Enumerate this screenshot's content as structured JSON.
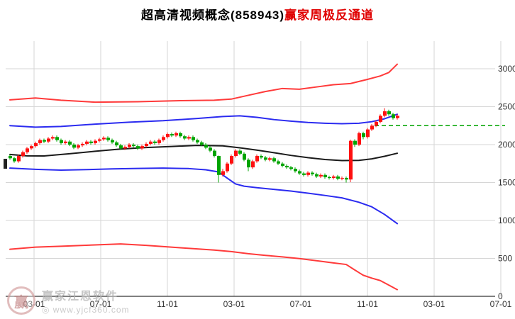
{
  "watermark": {
    "name": "赢家江恩软件",
    "url": "◎ www.yjcf360.com",
    "logo_char": "赢"
  },
  "chart_data": {
    "type": "candlestick",
    "title_black": "超高清视频概念(858943)",
    "title_red": "赢家周极反通道",
    "ylim": [
      0,
      3000
    ],
    "y_ticks": [
      0,
      500,
      1000,
      1500,
      2000,
      2500,
      3000
    ],
    "x_ticks": [
      "03-01",
      "07-01",
      "11-01",
      "03-01",
      "07-01",
      "11-01",
      "03-01",
      "07-01"
    ],
    "grid": true,
    "colors": {
      "up": "#fe1010",
      "down": "#00a400",
      "channel_red": "#ff3a3a",
      "channel_blue": "#2b2bf0",
      "channel_mid": "#1a1a1a",
      "dashed": "#00a400",
      "grid": "#d6d6d6",
      "axis": "#000000",
      "tick_text": "#333333"
    },
    "candles": [
      [
        1850,
        1870,
        1800,
        1820
      ],
      [
        1820,
        1840,
        1760,
        1780
      ],
      [
        1780,
        1870,
        1760,
        1850
      ],
      [
        1850,
        1920,
        1830,
        1900
      ],
      [
        1900,
        1970,
        1880,
        1950
      ],
      [
        1950,
        2000,
        1930,
        1980
      ],
      [
        1980,
        2040,
        1960,
        2020
      ],
      [
        2020,
        2080,
        2000,
        2060
      ],
      [
        2060,
        2080,
        2020,
        2040
      ],
      [
        2040,
        2100,
        2020,
        2080
      ],
      [
        2080,
        2120,
        2060,
        2100
      ],
      [
        2100,
        2120,
        2040,
        2060
      ],
      [
        2060,
        2080,
        2000,
        2020
      ],
      [
        2020,
        2060,
        2000,
        2040
      ],
      [
        2040,
        2060,
        1980,
        2000
      ],
      [
        2000,
        2020,
        1940,
        1960
      ],
      [
        1960,
        2010,
        1940,
        1990
      ],
      [
        1990,
        2030,
        1970,
        2010
      ],
      [
        2010,
        2060,
        1990,
        2040
      ],
      [
        2040,
        2060,
        2000,
        2020
      ],
      [
        2020,
        2070,
        2000,
        2050
      ],
      [
        2050,
        2090,
        2030,
        2070
      ],
      [
        2070,
        2110,
        2050,
        2090
      ],
      [
        2090,
        2110,
        2040,
        2060
      ],
      [
        2060,
        2080,
        2010,
        2030
      ],
      [
        2030,
        2050,
        1970,
        1990
      ],
      [
        1990,
        2010,
        1930,
        1950
      ],
      [
        1950,
        1990,
        1930,
        1970
      ],
      [
        1970,
        2020,
        1950,
        2000
      ],
      [
        2000,
        2020,
        1960,
        1980
      ],
      [
        1980,
        2000,
        1930,
        1950
      ],
      [
        1950,
        2000,
        1930,
        1980
      ],
      [
        1980,
        2030,
        1960,
        2010
      ],
      [
        2010,
        2060,
        1990,
        2040
      ],
      [
        2040,
        2060,
        2000,
        2020
      ],
      [
        2020,
        2080,
        2000,
        2060
      ],
      [
        2060,
        2120,
        2040,
        2100
      ],
      [
        2100,
        2160,
        2080,
        2140
      ],
      [
        2140,
        2160,
        2100,
        2120
      ],
      [
        2120,
        2170,
        2100,
        2150
      ],
      [
        2150,
        2170,
        2090,
        2110
      ],
      [
        2110,
        2130,
        2060,
        2080
      ],
      [
        2080,
        2120,
        2060,
        2100
      ],
      [
        2100,
        2120,
        2040,
        2060
      ],
      [
        2060,
        2080,
        2010,
        2030
      ],
      [
        2030,
        2050,
        1980,
        2000
      ],
      [
        2000,
        2020,
        1940,
        1960
      ],
      [
        1960,
        1980,
        1900,
        1920
      ],
      [
        1920,
        1940,
        1830,
        1850
      ],
      [
        1850,
        1855,
        1500,
        1600
      ],
      [
        1600,
        1680,
        1580,
        1650
      ],
      [
        1650,
        1770,
        1630,
        1750
      ],
      [
        1750,
        1870,
        1730,
        1850
      ],
      [
        1850,
        1940,
        1830,
        1920
      ],
      [
        1920,
        1940,
        1860,
        1880
      ],
      [
        1880,
        1900,
        1780,
        1800
      ],
      [
        1800,
        1820,
        1650,
        1700
      ],
      [
        1700,
        1800,
        1680,
        1780
      ],
      [
        1780,
        1870,
        1760,
        1850
      ],
      [
        1850,
        1870,
        1810,
        1830
      ],
      [
        1830,
        1850,
        1780,
        1800
      ],
      [
        1800,
        1840,
        1780,
        1820
      ],
      [
        1820,
        1840,
        1760,
        1780
      ],
      [
        1780,
        1800,
        1730,
        1750
      ],
      [
        1750,
        1770,
        1700,
        1720
      ],
      [
        1720,
        1740,
        1680,
        1700
      ],
      [
        1700,
        1720,
        1660,
        1680
      ],
      [
        1680,
        1700,
        1630,
        1650
      ],
      [
        1650,
        1670,
        1600,
        1620
      ],
      [
        1620,
        1640,
        1580,
        1600
      ],
      [
        1600,
        1650,
        1580,
        1630
      ],
      [
        1630,
        1650,
        1590,
        1610
      ],
      [
        1610,
        1630,
        1560,
        1580
      ],
      [
        1580,
        1620,
        1560,
        1600
      ],
      [
        1600,
        1620,
        1550,
        1570
      ],
      [
        1570,
        1590,
        1540,
        1560
      ],
      [
        1560,
        1600,
        1540,
        1580
      ],
      [
        1580,
        1600,
        1530,
        1550
      ],
      [
        1550,
        1580,
        1530,
        1560
      ],
      [
        1560,
        1580,
        1500,
        1540
      ],
      [
        1540,
        2065,
        1505,
        2050
      ],
      [
        2050,
        2070,
        1970,
        2000
      ],
      [
        2000,
        2170,
        1980,
        2150
      ],
      [
        2150,
        2170,
        2070,
        2100
      ],
      [
        2100,
        2220,
        2080,
        2200
      ],
      [
        2200,
        2270,
        2180,
        2250
      ],
      [
        2250,
        2320,
        2230,
        2300
      ],
      [
        2300,
        2400,
        2280,
        2380
      ],
      [
        2380,
        2480,
        2360,
        2440
      ],
      [
        2440,
        2460,
        2380,
        2400
      ],
      [
        2400,
        2420,
        2330,
        2350
      ],
      [
        2350,
        2400,
        2330,
        2380
      ]
    ],
    "channel_lines": {
      "upper_red": [
        [
          0,
          2590
        ],
        [
          6,
          2615
        ],
        [
          12,
          2585
        ],
        [
          20,
          2560
        ],
        [
          30,
          2565
        ],
        [
          40,
          2580
        ],
        [
          48,
          2585
        ],
        [
          52,
          2600
        ],
        [
          56,
          2650
        ],
        [
          60,
          2700
        ],
        [
          64,
          2740
        ],
        [
          68,
          2730
        ],
        [
          72,
          2760
        ],
        [
          76,
          2790
        ],
        [
          80,
          2805
        ],
        [
          84,
          2860
        ],
        [
          87,
          2905
        ],
        [
          89,
          2950
        ],
        [
          91,
          3060
        ]
      ],
      "upper_blue": [
        [
          0,
          2250
        ],
        [
          6,
          2230
        ],
        [
          12,
          2240
        ],
        [
          20,
          2270
        ],
        [
          28,
          2295
        ],
        [
          36,
          2315
        ],
        [
          44,
          2345
        ],
        [
          50,
          2370
        ],
        [
          54,
          2380
        ],
        [
          58,
          2360
        ],
        [
          62,
          2330
        ],
        [
          66,
          2310
        ],
        [
          70,
          2292
        ],
        [
          74,
          2282
        ],
        [
          78,
          2276
        ],
        [
          82,
          2282
        ],
        [
          85,
          2302
        ],
        [
          88,
          2340
        ],
        [
          91,
          2400
        ]
      ],
      "middle_black": [
        [
          0,
          1870
        ],
        [
          4,
          1852
        ],
        [
          8,
          1850
        ],
        [
          14,
          1880
        ],
        [
          20,
          1912
        ],
        [
          26,
          1942
        ],
        [
          32,
          1962
        ],
        [
          38,
          1976
        ],
        [
          44,
          1990
        ],
        [
          50,
          1984
        ],
        [
          54,
          1958
        ],
        [
          58,
          1928
        ],
        [
          62,
          1894
        ],
        [
          66,
          1858
        ],
        [
          70,
          1828
        ],
        [
          74,
          1804
        ],
        [
          78,
          1790
        ],
        [
          82,
          1792
        ],
        [
          85,
          1812
        ],
        [
          88,
          1846
        ],
        [
          91,
          1886
        ]
      ],
      "lower_blue": [
        [
          0,
          1690
        ],
        [
          6,
          1674
        ],
        [
          12,
          1664
        ],
        [
          18,
          1670
        ],
        [
          24,
          1680
        ],
        [
          30,
          1686
        ],
        [
          36,
          1690
        ],
        [
          42,
          1684
        ],
        [
          46,
          1668
        ],
        [
          49,
          1640
        ],
        [
          51,
          1560
        ],
        [
          53,
          1482
        ],
        [
          55,
          1452
        ],
        [
          58,
          1432
        ],
        [
          62,
          1410
        ],
        [
          66,
          1388
        ],
        [
          70,
          1360
        ],
        [
          74,
          1330
        ],
        [
          78,
          1298
        ],
        [
          82,
          1240
        ],
        [
          85,
          1180
        ],
        [
          88,
          1080
        ],
        [
          91,
          958
        ]
      ],
      "lower_red": [
        [
          0,
          620
        ],
        [
          6,
          648
        ],
        [
          12,
          660
        ],
        [
          20,
          678
        ],
        [
          26,
          690
        ],
        [
          32,
          672
        ],
        [
          40,
          640
        ],
        [
          48,
          610
        ],
        [
          52,
          590
        ],
        [
          56,
          562
        ],
        [
          60,
          540
        ],
        [
          64,
          520
        ],
        [
          68,
          498
        ],
        [
          72,
          470
        ],
        [
          76,
          440
        ],
        [
          79,
          420
        ],
        [
          81,
          348
        ],
        [
          83,
          278
        ],
        [
          85,
          240
        ],
        [
          87,
          208
        ],
        [
          89,
          148
        ],
        [
          91,
          88
        ]
      ]
    },
    "dashed_line": {
      "value": 2250
    }
  }
}
